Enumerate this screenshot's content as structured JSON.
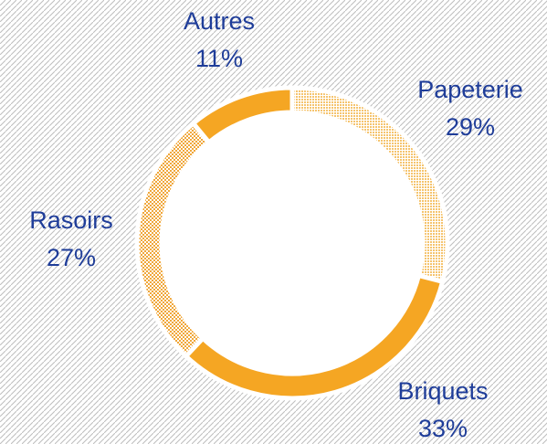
{
  "chart_data": {
    "type": "donut",
    "categories": [
      "Papeterie",
      "Briquets",
      "Rasoirs",
      "Autres"
    ],
    "values": [
      29,
      33,
      27,
      11
    ],
    "value_labels": [
      "29%",
      "33%",
      "27%",
      "11%"
    ],
    "colors": [
      "#f5a623",
      "#f5a623",
      "#f5a623",
      "#f5a623"
    ],
    "patterns": [
      "dots",
      "solid",
      "checker",
      "solid"
    ]
  }
}
